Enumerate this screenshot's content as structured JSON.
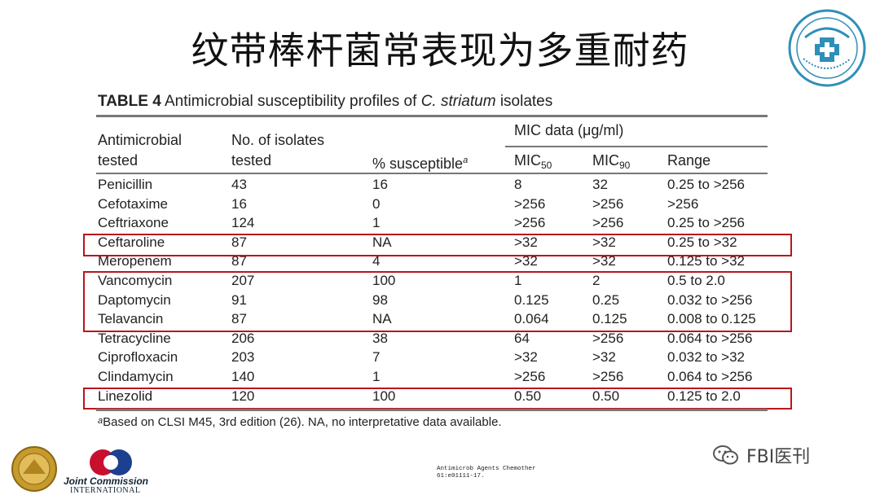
{
  "slide": {
    "title": "纹带棒杆菌常表现为多重耐药"
  },
  "table": {
    "caption_bold": "TABLE 4",
    "caption_text": "Antimicrobial susceptibility profiles of",
    "caption_species": "C. striatum",
    "caption_end": "isolates",
    "headers": {
      "antimicrobial_line1": "Antimicrobial",
      "antimicrobial_line2": "tested",
      "isolates_line1": "No. of isolates",
      "isolates_line2": "tested",
      "susceptible": "% susceptible",
      "susceptible_mark": "a",
      "mic_group": "MIC data (μg/ml)",
      "mic50_base": "MIC",
      "mic50_sub": "50",
      "mic90_base": "MIC",
      "mic90_sub": "90",
      "range": "Range"
    },
    "rows": [
      {
        "drug": "Penicillin",
        "n": "43",
        "susceptible": "16",
        "mic50": "8",
        "mic90": "32",
        "range": "0.25 to >256"
      },
      {
        "drug": "Cefotaxime",
        "n": "16",
        "susceptible": "0",
        "mic50": ">256",
        "mic90": ">256",
        "range": ">256"
      },
      {
        "drug": "Ceftriaxone",
        "n": "124",
        "susceptible": "1",
        "mic50": ">256",
        "mic90": ">256",
        "range": "0.25 to >256"
      },
      {
        "drug": "Ceftaroline",
        "n": "87",
        "susceptible": "NA",
        "mic50": ">32",
        "mic90": ">32",
        "range": "0.25 to >32"
      },
      {
        "drug": "Meropenem",
        "n": "87",
        "susceptible": "4",
        "mic50": ">32",
        "mic90": ">32",
        "range": "0.125 to >32"
      },
      {
        "drug": "Vancomycin",
        "n": "207",
        "susceptible": "100",
        "mic50": "1",
        "mic90": "2",
        "range": "0.5 to 2.0"
      },
      {
        "drug": "Daptomycin",
        "n": "91",
        "susceptible": "98",
        "mic50": "0.125",
        "mic90": "0.25",
        "range": "0.032 to >256"
      },
      {
        "drug": "Telavancin",
        "n": "87",
        "susceptible": "NA",
        "mic50": "0.064",
        "mic90": "0.125",
        "range": "0.008 to 0.125"
      },
      {
        "drug": "Tetracycline",
        "n": "206",
        "susceptible": "38",
        "mic50": "64",
        "mic90": ">256",
        "range": "0.064 to >256"
      },
      {
        "drug": "Ciprofloxacin",
        "n": "203",
        "susceptible": "7",
        "mic50": ">32",
        "mic90": ">32",
        "range": "0.032 to >32"
      },
      {
        "drug": "Clindamycin",
        "n": "140",
        "susceptible": "1",
        "mic50": ">256",
        "mic90": ">256",
        "range": "0.064 to >256"
      },
      {
        "drug": "Linezolid",
        "n": "120",
        "susceptible": "100",
        "mic50": "0.50",
        "mic90": "0.50",
        "range": "0.125 to 2.0"
      }
    ],
    "footnote_mark": "a",
    "footnote": "Based on CLSI M45, 3rd edition (26). NA, no interpretative data available."
  },
  "footer": {
    "jc_name": "Joint Commission",
    "jc_intl": "INTERNATIONAL",
    "citation_line1": "Antimicrob Agents Chemother",
    "citation_line2": "61:e01111-17.",
    "wechat_label": "FBI医刊"
  },
  "colors": {
    "highlight": "#b8161c",
    "rule": "#777777",
    "hospital_logo": "#2f8fb8"
  }
}
